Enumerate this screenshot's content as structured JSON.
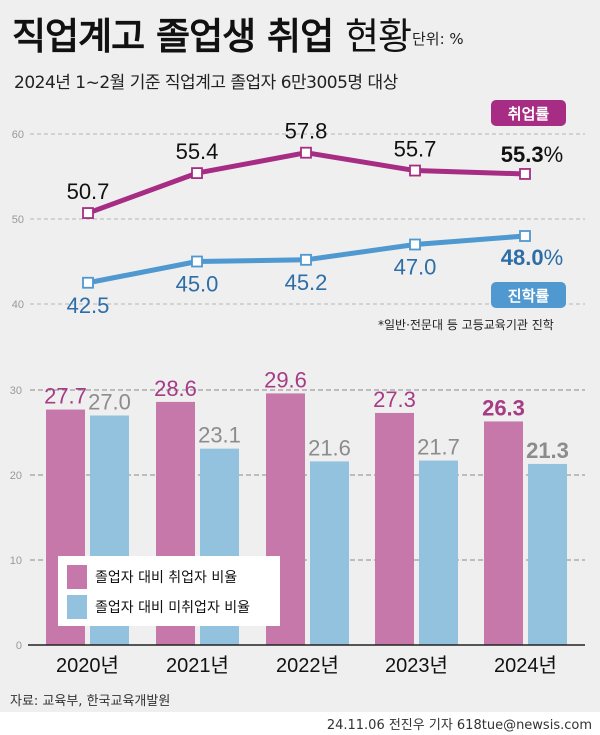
{
  "header": {
    "title_bold": "직업계고 졸업생 취업",
    "title_light": "현황",
    "unit": "단위: %",
    "subtitle": "2024년 1~2월 기준 직업계고 졸업자 6만3005명 대상"
  },
  "colors": {
    "employment_line": "#a62d83",
    "advancement_line": "#4f98d0",
    "bar_employed": "#c678aa",
    "bar_unemployed": "#93c2de",
    "background": "#efefef"
  },
  "chart_data": [
    {
      "type": "line",
      "x": [
        "2020년",
        "2021년",
        "2022년",
        "2023년",
        "2024년"
      ],
      "ylim": [
        40,
        60
      ],
      "yticks": [
        "40",
        "50",
        "60"
      ],
      "grid": true,
      "series": [
        {
          "name": "취업률",
          "values": [
            50.7,
            55.4,
            57.8,
            55.7,
            55.3
          ],
          "labels": [
            "50.7",
            "55.4",
            "57.8",
            "55.7",
            "55.3"
          ]
        },
        {
          "name": "진학률",
          "values": [
            42.5,
            45.0,
            45.2,
            47.0,
            48.0
          ],
          "labels": [
            "42.5",
            "45.0",
            "45.2",
            "47.0",
            "48.0"
          ]
        }
      ],
      "percent_sign": "%",
      "footnote": "*일반·전문대 등 고등교육기관 진학"
    },
    {
      "type": "bar",
      "categories": [
        "2020년",
        "2021년",
        "2022년",
        "2023년",
        "2024년"
      ],
      "ylim": [
        0,
        30
      ],
      "yticks": [
        "0",
        "10",
        "20",
        "30"
      ],
      "grid": true,
      "legend_position": "bottom-left",
      "series": [
        {
          "name": "졸업자 대비 취업자 비율",
          "values": [
            27.7,
            28.6,
            29.6,
            27.3,
            26.3
          ],
          "labels": [
            "27.7",
            "28.6",
            "29.6",
            "27.3",
            "26.3"
          ]
        },
        {
          "name": "졸업자 대비 미취업자 비율",
          "values": [
            27.0,
            23.1,
            21.6,
            21.7,
            21.3
          ],
          "labels": [
            "27.0",
            "23.1",
            "21.6",
            "21.7",
            "21.3"
          ]
        }
      ]
    }
  ],
  "footer": {
    "source": "자료: 교육부, 한국교육개발원",
    "credit": "24.11.06 전진우 기자 618tue@newsis.com"
  }
}
